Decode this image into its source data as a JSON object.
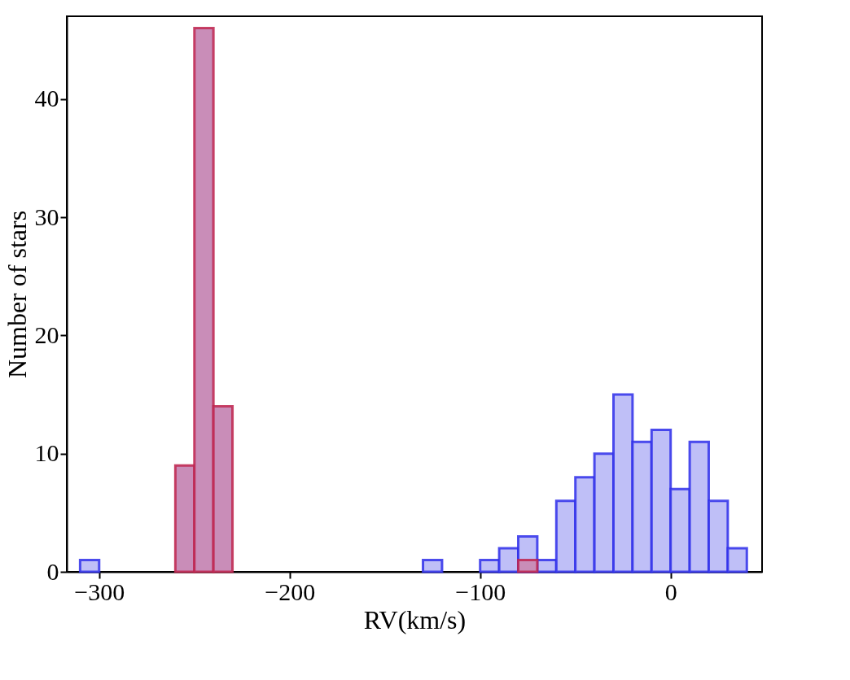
{
  "chart_data": {
    "type": "histogram",
    "xlabel": "RV(km/s)",
    "ylabel": "Number of stars",
    "bins": [
      -310,
      -300,
      -290,
      -280,
      -270,
      -260,
      -250,
      -240,
      -230,
      -220,
      -210,
      -200,
      -190,
      -180,
      -170,
      -160,
      -150,
      -140,
      -130,
      -120,
      -110,
      -100,
      -90,
      -80,
      -70,
      -60,
      -50,
      -40,
      -30,
      -20,
      -10,
      0,
      10,
      20,
      30,
      40
    ],
    "series": [
      {
        "color": "#bfbff7",
        "values": [
          1,
          0,
          0,
          0,
          0,
          0,
          0,
          0,
          0,
          0,
          0,
          0,
          0,
          0,
          0,
          0,
          0,
          0,
          1,
          0,
          0,
          1,
          2,
          3,
          1,
          6,
          8,
          10,
          15,
          11,
          12,
          7,
          11,
          6,
          2
        ]
      },
      {
        "color": "#c98db8",
        "values": [
          0,
          0,
          0,
          0,
          0,
          9,
          46,
          14,
          0,
          0,
          0,
          0,
          0,
          0,
          0,
          0,
          0,
          0,
          0,
          0,
          0,
          0,
          0,
          1,
          0,
          0,
          0,
          0,
          0,
          0,
          0,
          0,
          0,
          0,
          0
        ]
      }
    ],
    "xlim": [
      -317,
      48
    ],
    "ylim": [
      0,
      47
    ],
    "xticks": [
      -300,
      -200,
      -100,
      0
    ],
    "yticks": [
      0,
      10,
      20,
      30,
      40
    ],
    "grid": false
  }
}
